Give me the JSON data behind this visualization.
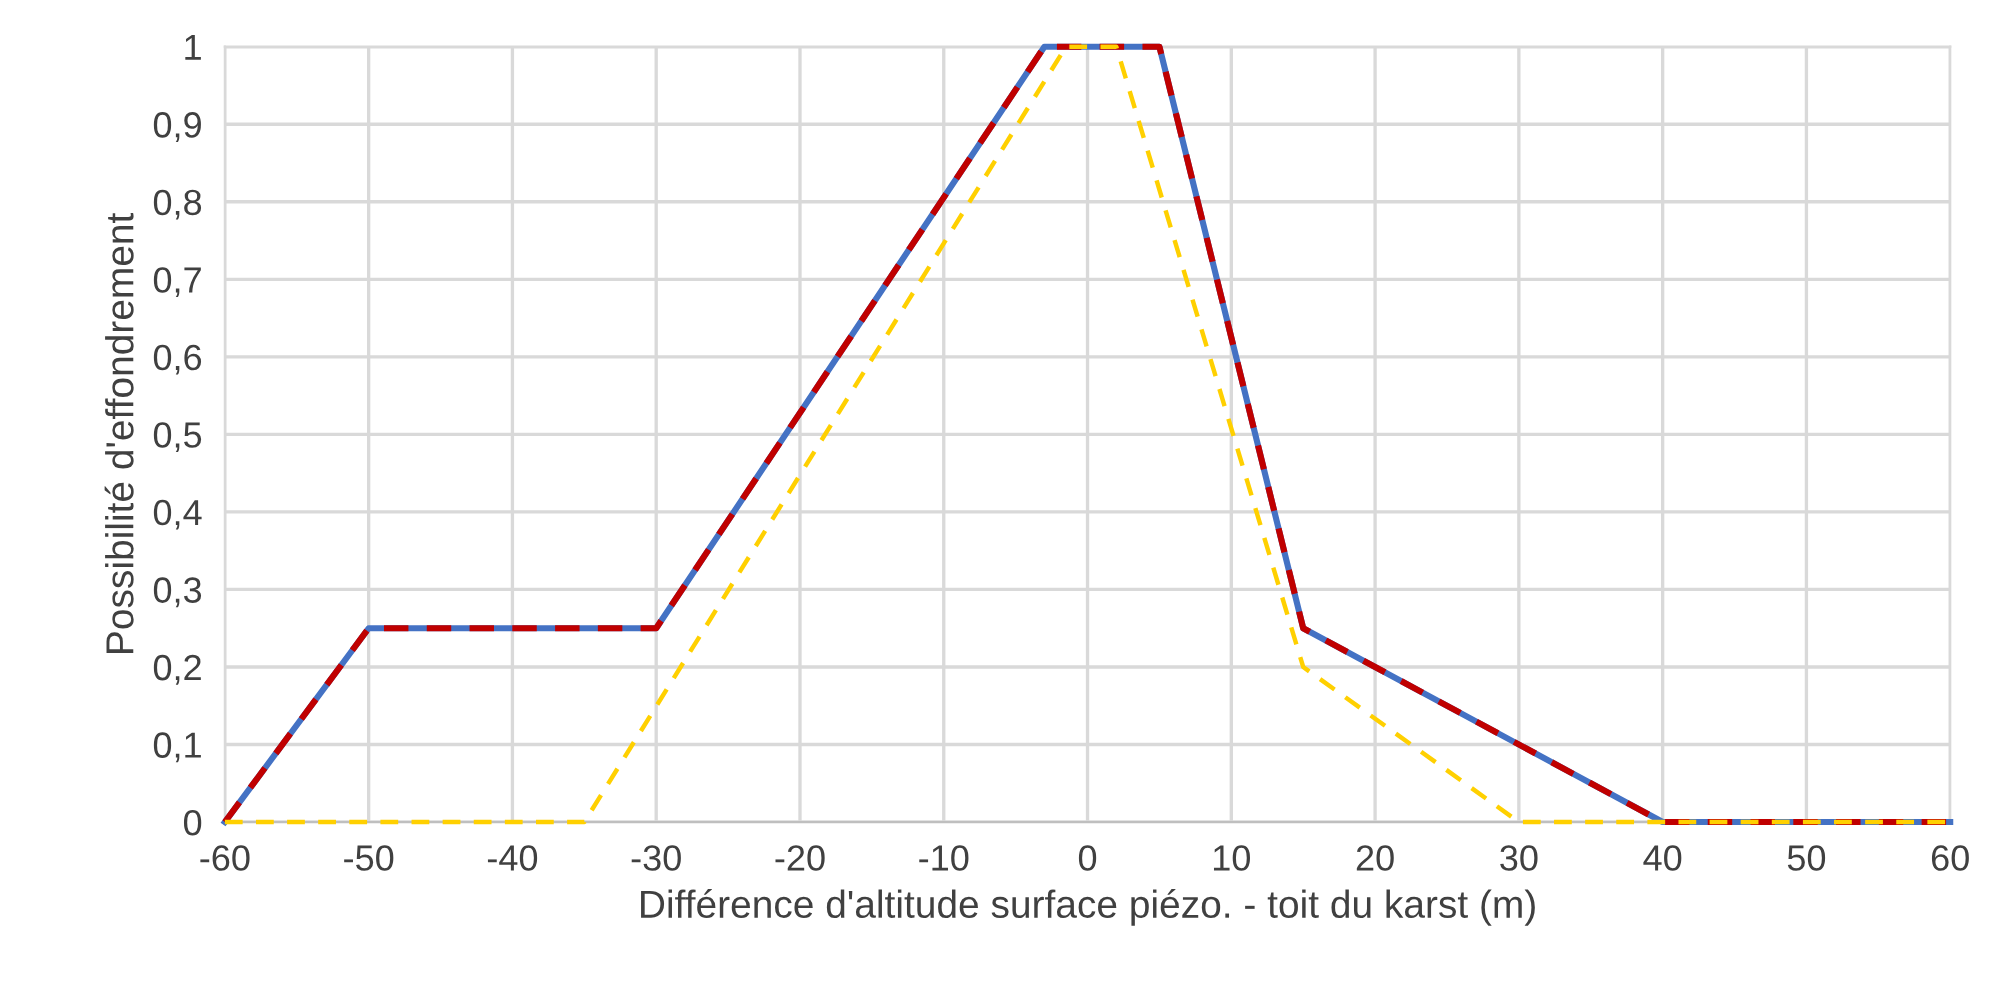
{
  "chart_data": {
    "type": "line",
    "xlabel": "Différence d'altitude surface piézo. - toit du karst (m)",
    "ylabel": "Possibilité d'effondrement",
    "series": [
      {
        "color": "#4472c4",
        "line_style": "solid",
        "x": [
          -60,
          -50,
          -30,
          -3,
          5,
          15,
          40,
          60
        ],
        "values": [
          0,
          0.25,
          0.25,
          1,
          1,
          0.25,
          0,
          0
        ]
      },
      {
        "color": "#c00000",
        "line_style": "dashed",
        "x": [
          -60,
          -50,
          -30,
          -3,
          5,
          15,
          40,
          60
        ],
        "values": [
          0,
          0.25,
          0.25,
          1,
          1,
          0.25,
          0,
          0
        ]
      },
      {
        "color": "#ffd000",
        "line_style": "dashed",
        "x": [
          -60,
          -35,
          -1.5,
          2,
          15,
          30,
          60
        ],
        "values": [
          0,
          0,
          1,
          1,
          0.2,
          0,
          0
        ]
      }
    ],
    "xlim": [
      -60,
      60
    ],
    "xticks": [
      -60,
      -50,
      -40,
      -30,
      -20,
      -10,
      0,
      10,
      20,
      30,
      40,
      50,
      60
    ],
    "ylim": [
      0,
      1
    ],
    "yticks": [
      0,
      {
        "value": 0.1,
        "label": "0,1"
      },
      {
        "value": 0.2,
        "label": "0,2"
      },
      {
        "value": 0.3,
        "label": "0,3"
      },
      {
        "value": 0.4,
        "label": "0,4"
      },
      {
        "value": 0.5,
        "label": "0,5"
      },
      {
        "value": 0.6,
        "label": "0,6"
      },
      {
        "value": 0.7,
        "label": "0,7"
      },
      {
        "value": 0.8,
        "label": "0,8"
      },
      {
        "value": 0.9,
        "label": "0,9"
      },
      1
    ],
    "grid": true,
    "marker": "none"
  }
}
